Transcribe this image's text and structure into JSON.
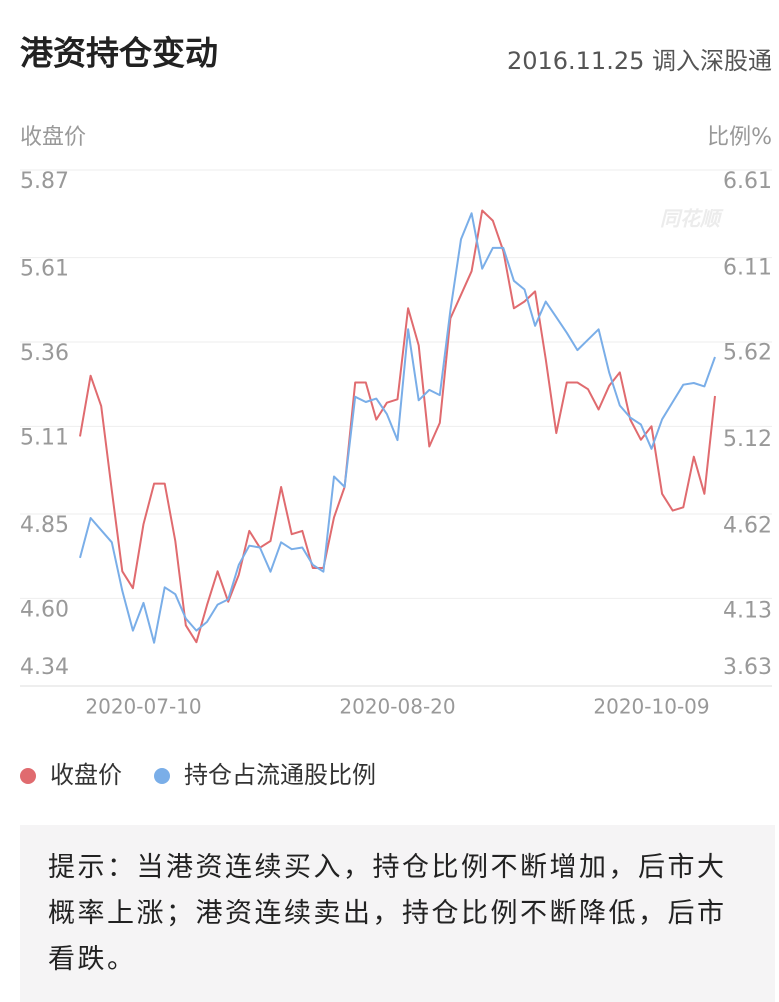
{
  "header": {
    "title": "港资持仓变动",
    "subtitle": "2016.11.25 调入深股通"
  },
  "chart_data": {
    "type": "line",
    "ylabel": "收盘价",
    "y2label": "比例%",
    "watermark": "同花顺",
    "categories": [
      null,
      null,
      null,
      null,
      null,
      null,
      "2020-07-10",
      null,
      null,
      null,
      null,
      null,
      null,
      null,
      null,
      null,
      null,
      null,
      null,
      null,
      null,
      null,
      null,
      null,
      null,
      null,
      null,
      null,
      null,
      null,
      "2020-08-20",
      null,
      null,
      null,
      null,
      null,
      null,
      null,
      null,
      null,
      null,
      null,
      null,
      null,
      null,
      null,
      null,
      null,
      null,
      null,
      null,
      null,
      null,
      null,
      "2020-10-09",
      null,
      null,
      null,
      null,
      null,
      null
    ],
    "series": [
      {
        "name": "收盘价",
        "color": "#e06b6f",
        "values": [
          5.08,
          5.26,
          5.17,
          4.92,
          4.68,
          4.63,
          4.82,
          4.94,
          4.94,
          4.77,
          4.52,
          4.47,
          4.58,
          4.68,
          4.59,
          4.67,
          4.8,
          4.75,
          4.77,
          4.93,
          4.79,
          4.8,
          4.69,
          4.69,
          4.84,
          4.93,
          5.24,
          5.24,
          5.13,
          5.18,
          5.19,
          5.46,
          5.35,
          5.05,
          5.12,
          5.43,
          5.5,
          5.57,
          5.75,
          5.72,
          5.63,
          5.46,
          5.48,
          5.51,
          5.31,
          5.09,
          5.24,
          5.24,
          5.22,
          5.16,
          5.23,
          5.27,
          5.13,
          5.07,
          5.11,
          4.91,
          4.86,
          4.87,
          5.02,
          4.91,
          5.2
        ]
      },
      {
        "name": "持仓占流通股比例",
        "color": "#7aaee8",
        "axis": "y2",
        "values": [
          4.37,
          4.6,
          4.53,
          4.46,
          4.18,
          3.95,
          4.11,
          3.88,
          4.2,
          4.16,
          4.02,
          3.95,
          4.0,
          4.1,
          4.13,
          4.33,
          4.44,
          4.43,
          4.29,
          4.46,
          4.42,
          4.43,
          4.33,
          4.29,
          4.84,
          4.78,
          5.3,
          5.27,
          5.29,
          5.2,
          5.05,
          5.69,
          5.28,
          5.34,
          5.31,
          5.8,
          6.21,
          6.36,
          6.04,
          6.16,
          6.16,
          5.97,
          5.92,
          5.71,
          5.85,
          5.76,
          5.67,
          5.57,
          5.63,
          5.69,
          5.44,
          5.25,
          5.18,
          5.14,
          5.0,
          5.17,
          5.27,
          5.37,
          5.38,
          5.36,
          5.53
        ]
      }
    ],
    "ylim": [
      4.34,
      5.87
    ],
    "yticks": [
      4.34,
      {
        "value": 4.6,
        "label": "4.60"
      },
      4.85,
      5.11,
      5.36,
      5.61,
      5.87
    ],
    "y2lim": [
      3.63,
      6.61
    ],
    "y2ticks": [
      3.63,
      4.13,
      4.62,
      5.12,
      5.62,
      6.11,
      6.61
    ],
    "grid": true
  },
  "note": {
    "text": "提示：当港资连续买入，持仓比例不断增加，后市大概率上涨；港资连续卖出，持仓比例不断降低，后市看跌。"
  }
}
